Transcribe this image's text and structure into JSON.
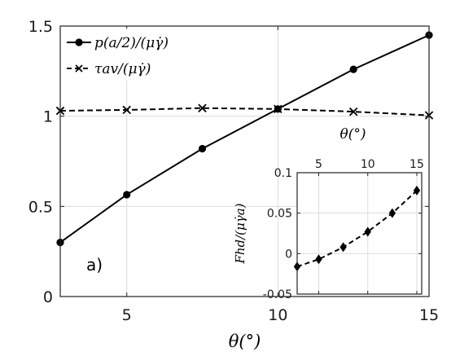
{
  "chart_data": [
    {
      "type": "line",
      "panel_label": "a)",
      "xlabel": "θ(°)",
      "ylabel": "",
      "xlim": [
        2.8,
        15
      ],
      "ylim": [
        0,
        1.5
      ],
      "xticks": [
        5,
        10,
        15
      ],
      "yticks": [
        0,
        0.5,
        1,
        1.5
      ],
      "ytick_labels": [
        "0",
        "0.5",
        "1",
        "1.5"
      ],
      "grid": true,
      "legend_position": "top-left",
      "series": [
        {
          "name": "p(a/2)/(μγ̇)",
          "line_style": "solid",
          "marker": "circle",
          "color": "#000000",
          "x": [
            2.8,
            5,
            7.5,
            10,
            12.5,
            15
          ],
          "y": [
            0.3,
            0.565,
            0.82,
            1.04,
            1.26,
            1.45
          ]
        },
        {
          "name": "τav/(μγ̇)",
          "line_style": "dashed",
          "marker": "x",
          "color": "#000000",
          "x": [
            2.8,
            5,
            7.5,
            10,
            12.5,
            15
          ],
          "y": [
            1.03,
            1.035,
            1.045,
            1.04,
            1.025,
            1.005
          ]
        }
      ]
    },
    {
      "type": "line",
      "inset": true,
      "xlabel": "θ(°)",
      "ylabel": "Fhd/(μγ̇a)",
      "xlim": [
        2.8,
        15.5
      ],
      "ylim": [
        -0.05,
        0.1
      ],
      "xticks": [
        5,
        10,
        15
      ],
      "yticks": [
        -0.05,
        0,
        0.05,
        0.1
      ],
      "ytick_labels": [
        "-0.05",
        "0",
        "0.05",
        "0.1"
      ],
      "grid": true,
      "series": [
        {
          "line_style": "dashed",
          "marker": "diamond",
          "color": "#000000",
          "x": [
            2.8,
            5,
            7.5,
            10,
            12.5,
            15
          ],
          "y": [
            -0.016,
            -0.007,
            0.008,
            0.027,
            0.05,
            0.078
          ]
        }
      ]
    }
  ]
}
